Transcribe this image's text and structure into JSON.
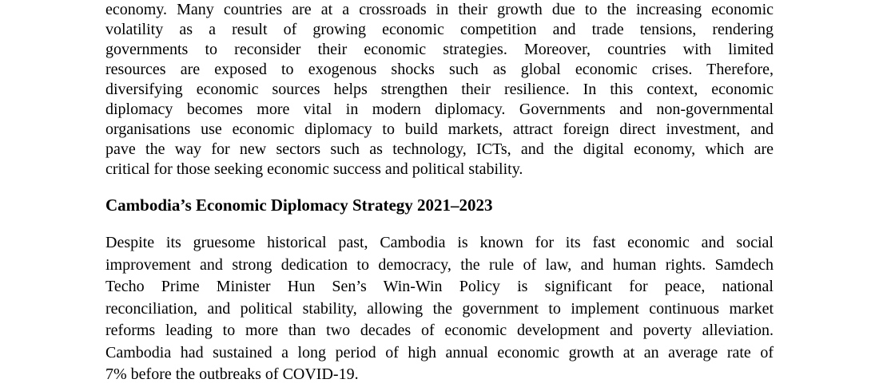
{
  "page": {
    "background": "#ffffff",
    "text_color": "#000000"
  },
  "content": {
    "paragraph1": {
      "lines": [
        "economy. Many countries are at a crossroads in their growth due to the increasing economic",
        "volatility as a result of growing economic competition and trade tensions, rendering",
        "governments to reconsider their economic strategies. Moreover, countries with limited",
        "resources are exposed to exogenous shocks such as global economic crises. Therefore,",
        "diversifying economic sources helps strengthen their resilience. In this context, economic",
        "diplomacy becomes more vital in modern diplomacy. Governments and non-governmental",
        "organisations use economic diplomacy to build markets, attract foreign direct investment, and",
        "pave the way for new sectors such as technology, ICTs, and the digital economy, which are",
        "critical for those seeking economic success and political stability."
      ]
    },
    "heading": "Cambodia’s Economic Diplomacy Strategy 2021–2023",
    "paragraph2": {
      "lines": [
        "Despite its gruesome historical past, Cambodia is known for its fast economic and social",
        "improvement and strong dedication to democracy, the rule of law, and human rights. Samdech",
        "Techo Prime Minister Hun Sen’s Win-Win Policy is significant for peace, national",
        "reconciliation, and political stability, allowing the government to implement continuous market",
        "reforms leading to more than two decades of economic development and poverty alleviation.",
        "Cambodia had sustained a long period of high annual economic growth at an average rate of",
        "7% before the outbreaks of COVID-19."
      ]
    }
  }
}
